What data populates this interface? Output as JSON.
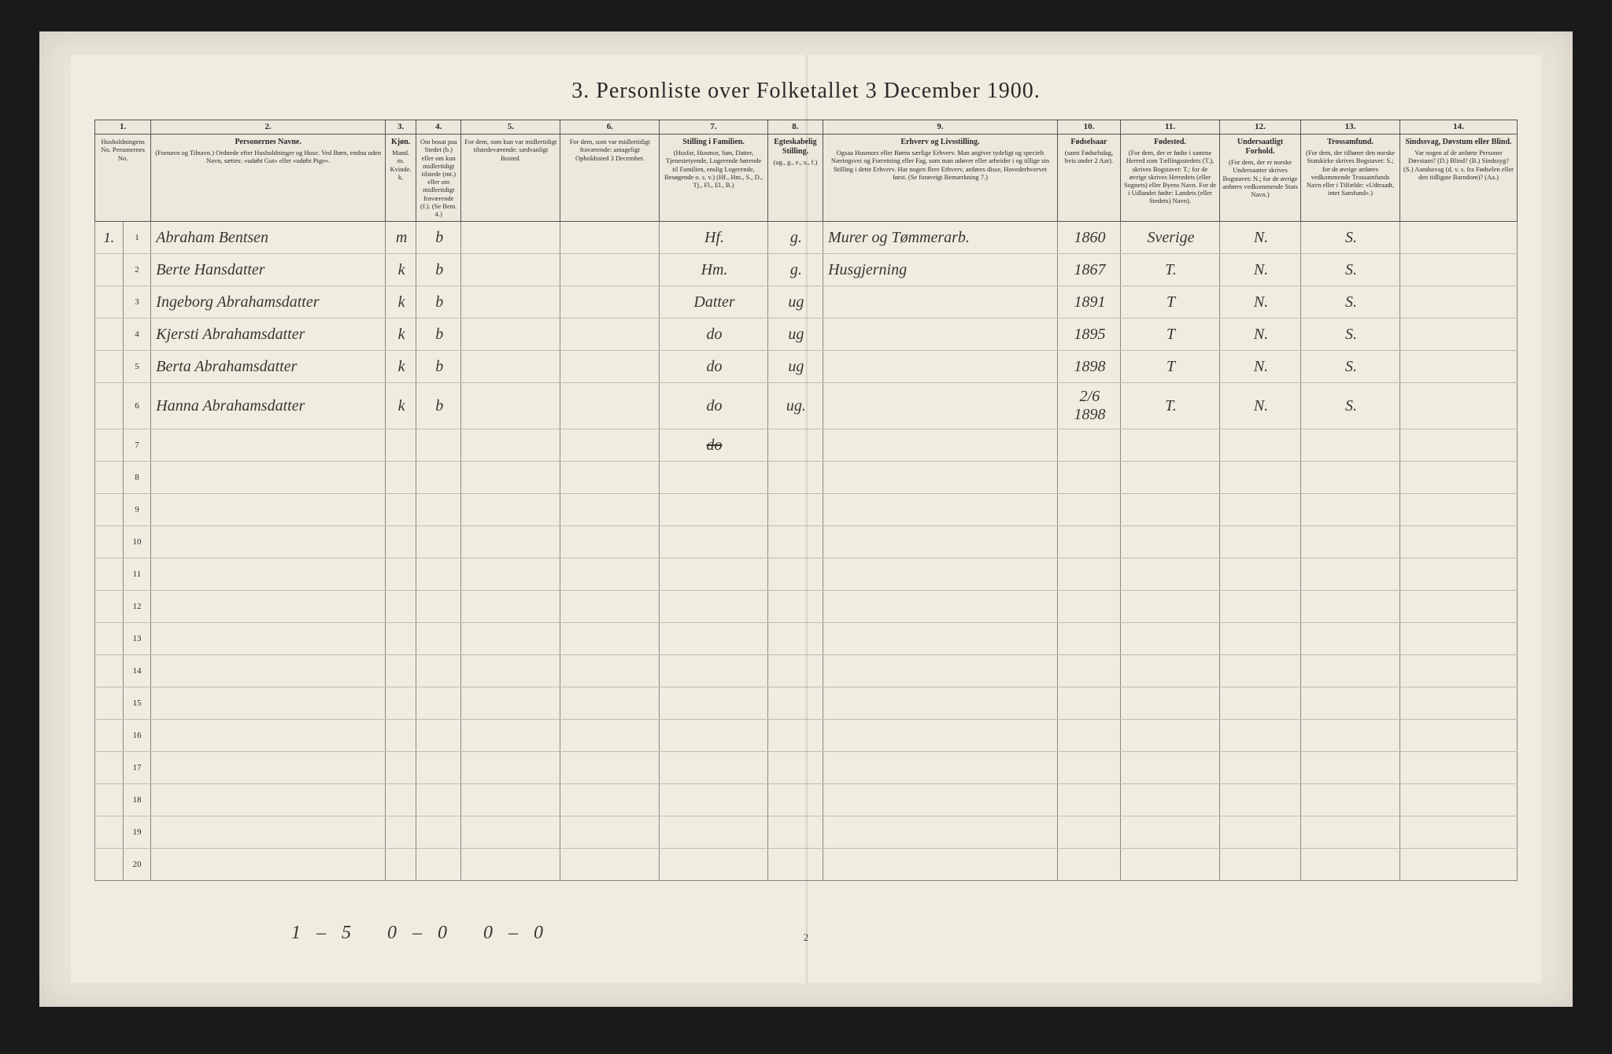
{
  "title": "3.   Personliste over Folketallet 3 December 1900.",
  "columns": {
    "c1": {
      "num": "1.",
      "title": "",
      "sub": "Husholdningens No.\nPersonernes No."
    },
    "c2": {
      "num": "2.",
      "title": "Personernes Navne.",
      "sub": "(Fornavn og Tilnavn.)\nOrdnede efter Husholdninger og Huse.\nVed Børn, endnu uden Navn, sættes: «udøbt Gut» eller «udøbt Pige»."
    },
    "c3": {
      "num": "3.",
      "title": "Kjøn.",
      "sub": "Mand. m.\nKvinde. k."
    },
    "c4": {
      "num": "4.",
      "title": "",
      "sub": "Om bosat paa Stedet (b.) eller om kun midlertidigt tilstede (mt.) eller om midlertidigt fraværende (f.). (Se Bem. 4.)"
    },
    "c5": {
      "num": "5.",
      "title": "",
      "sub": "For dem, som kun var midlertidigt tilstedeværende:\nsædvanligt Bosted."
    },
    "c6": {
      "num": "6.",
      "title": "",
      "sub": "For dem, som var midlertidigt fraværende:\nantageligt Opholdssted 3 December."
    },
    "c7": {
      "num": "7.",
      "title": "Stilling i Familien.",
      "sub": "(Husfar, Husmor, Søn, Datter, Tjenestetyende, Logerende hørende til Familien, enslig Logerende, Besøgende o. s. v.)\n(Hf., Hm., S., D., Tj., Fl., El., B.)"
    },
    "c8": {
      "num": "8.",
      "title": "Egteskabelig Stilling.",
      "sub": "(ug., g., e., s., f.)"
    },
    "c9": {
      "num": "9.",
      "title": "Erhverv og Livsstilling.",
      "sub": "Ogsaa Husmors eller Børns særlige Erhverv. Man angiver tydeligt og specielt Næringsvei og Forretning eller Fag, som man udøver eller arbeider i og tillige sin Stilling i dette Erhverv. Har nogen flere Erhverv, anføres disse, Hovederhvervet først.\n(Se forøvrigt Bemærkning 7.)"
    },
    "c10": {
      "num": "10.",
      "title": "Fødselsaar",
      "sub": "(samt Fødselsdag, hvis under 2 Aar)."
    },
    "c11": {
      "num": "11.",
      "title": "Fødested.",
      "sub": "(For dem, der er fødte i samme Herred som Tællingsstedets (T.), skrives Bogstavet: T.; for de øvrige skrives Herredets (eller Sognets) eller Byens Navn. For de i Udlandet fødte: Landets (eller Stedets) Navn)."
    },
    "c12": {
      "num": "12.",
      "title": "Undersaatligt Forhold.",
      "sub": "(For dem, der er norske Undersaatter skrives Bogstavet: N.; for de øvrige anføres vedkommende Stats Navn.)"
    },
    "c13": {
      "num": "13.",
      "title": "Trossamfund.",
      "sub": "(For dem, der tilhører den norske Statskirke skrives Bogstavet: S.; for de øvrige anføres vedkommende Trossamfunds Navn eller i Tilfælde: «Udtraadt, intet Samfund».)"
    },
    "c14": {
      "num": "14.",
      "title": "Sindssvag, Døvstum eller Blind.",
      "sub": "Var nogen af de anførte Personer Døvstum? (D.) Blind? (B.) Sindssyg? (S.) Aandssvag (d. v. s. fra Fødselen eller den tidligste Barndom)? (Aa.)"
    }
  },
  "rows": [
    {
      "hh": "1.",
      "pn": "1",
      "name": "Abraham Bentsen",
      "sex": "m",
      "res": "b",
      "c5": "",
      "c6": "",
      "fam": "Hf.",
      "mar": "g.",
      "occ": "Murer og Tømmerarb.",
      "year": "1860",
      "birthplace": "Sverige",
      "nat": "N.",
      "rel": "S.",
      "c14": ""
    },
    {
      "hh": "",
      "pn": "2",
      "name": "Berte Hansdatter",
      "sex": "k",
      "res": "b",
      "c5": "",
      "c6": "",
      "fam": "Hm.",
      "mar": "g.",
      "occ": "Husgjerning",
      "year": "1867",
      "birthplace": "T.",
      "nat": "N.",
      "rel": "S.",
      "c14": ""
    },
    {
      "hh": "",
      "pn": "3",
      "name": "Ingeborg Abrahamsdatter",
      "sex": "k",
      "res": "b",
      "c5": "",
      "c6": "",
      "fam": "Datter",
      "mar": "ug",
      "occ": "",
      "year": "1891",
      "birthplace": "T",
      "nat": "N.",
      "rel": "S.",
      "c14": ""
    },
    {
      "hh": "",
      "pn": "4",
      "name": "Kjersti Abrahamsdatter",
      "sex": "k",
      "res": "b",
      "c5": "",
      "c6": "",
      "fam": "do",
      "mar": "ug",
      "occ": "",
      "year": "1895",
      "birthplace": "T",
      "nat": "N.",
      "rel": "S.",
      "c14": ""
    },
    {
      "hh": "",
      "pn": "5",
      "name": "Berta Abrahamsdatter",
      "sex": "k",
      "res": "b",
      "c5": "",
      "c6": "",
      "fam": "do",
      "mar": "ug",
      "occ": "",
      "year": "1898",
      "birthplace": "T",
      "nat": "N.",
      "rel": "S.",
      "c14": ""
    },
    {
      "hh": "",
      "pn": "6",
      "name": "Hanna Abrahamsdatter",
      "sex": "k",
      "res": "b",
      "c5": "",
      "c6": "",
      "fam": "do",
      "mar": "ug.",
      "occ": "",
      "year": "2/6 1898",
      "birthplace": "T.",
      "nat": "N.",
      "rel": "S.",
      "c14": ""
    },
    {
      "hh": "",
      "pn": "7",
      "name": "",
      "sex": "",
      "res": "",
      "c5": "",
      "c6": "",
      "fam": "",
      "mar": "",
      "occ": "",
      "year": "",
      "birthplace": "",
      "nat": "",
      "rel": "",
      "c14": "",
      "struck": true
    },
    {
      "hh": "",
      "pn": "8",
      "name": "",
      "sex": "",
      "res": "",
      "c5": "",
      "c6": "",
      "fam": "",
      "mar": "",
      "occ": "",
      "year": "",
      "birthplace": "",
      "nat": "",
      "rel": "",
      "c14": ""
    },
    {
      "hh": "",
      "pn": "9",
      "name": "",
      "sex": "",
      "res": "",
      "c5": "",
      "c6": "",
      "fam": "",
      "mar": "",
      "occ": "",
      "year": "",
      "birthplace": "",
      "nat": "",
      "rel": "",
      "c14": ""
    },
    {
      "hh": "",
      "pn": "10",
      "name": "",
      "sex": "",
      "res": "",
      "c5": "",
      "c6": "",
      "fam": "",
      "mar": "",
      "occ": "",
      "year": "",
      "birthplace": "",
      "nat": "",
      "rel": "",
      "c14": ""
    },
    {
      "hh": "",
      "pn": "11",
      "name": "",
      "sex": "",
      "res": "",
      "c5": "",
      "c6": "",
      "fam": "",
      "mar": "",
      "occ": "",
      "year": "",
      "birthplace": "",
      "nat": "",
      "rel": "",
      "c14": ""
    },
    {
      "hh": "",
      "pn": "12",
      "name": "",
      "sex": "",
      "res": "",
      "c5": "",
      "c6": "",
      "fam": "",
      "mar": "",
      "occ": "",
      "year": "",
      "birthplace": "",
      "nat": "",
      "rel": "",
      "c14": ""
    },
    {
      "hh": "",
      "pn": "13",
      "name": "",
      "sex": "",
      "res": "",
      "c5": "",
      "c6": "",
      "fam": "",
      "mar": "",
      "occ": "",
      "year": "",
      "birthplace": "",
      "nat": "",
      "rel": "",
      "c14": ""
    },
    {
      "hh": "",
      "pn": "14",
      "name": "",
      "sex": "",
      "res": "",
      "c5": "",
      "c6": "",
      "fam": "",
      "mar": "",
      "occ": "",
      "year": "",
      "birthplace": "",
      "nat": "",
      "rel": "",
      "c14": ""
    },
    {
      "hh": "",
      "pn": "15",
      "name": "",
      "sex": "",
      "res": "",
      "c5": "",
      "c6": "",
      "fam": "",
      "mar": "",
      "occ": "",
      "year": "",
      "birthplace": "",
      "nat": "",
      "rel": "",
      "c14": ""
    },
    {
      "hh": "",
      "pn": "16",
      "name": "",
      "sex": "",
      "res": "",
      "c5": "",
      "c6": "",
      "fam": "",
      "mar": "",
      "occ": "",
      "year": "",
      "birthplace": "",
      "nat": "",
      "rel": "",
      "c14": ""
    },
    {
      "hh": "",
      "pn": "17",
      "name": "",
      "sex": "",
      "res": "",
      "c5": "",
      "c6": "",
      "fam": "",
      "mar": "",
      "occ": "",
      "year": "",
      "birthplace": "",
      "nat": "",
      "rel": "",
      "c14": ""
    },
    {
      "hh": "",
      "pn": "18",
      "name": "",
      "sex": "",
      "res": "",
      "c5": "",
      "c6": "",
      "fam": "",
      "mar": "",
      "occ": "",
      "year": "",
      "birthplace": "",
      "nat": "",
      "rel": "",
      "c14": ""
    },
    {
      "hh": "",
      "pn": "19",
      "name": "",
      "sex": "",
      "res": "",
      "c5": "",
      "c6": "",
      "fam": "",
      "mar": "",
      "occ": "",
      "year": "",
      "birthplace": "",
      "nat": "",
      "rel": "",
      "c14": ""
    },
    {
      "hh": "",
      "pn": "20",
      "name": "",
      "sex": "",
      "res": "",
      "c5": "",
      "c6": "",
      "fam": "",
      "mar": "",
      "occ": "",
      "year": "",
      "birthplace": "",
      "nat": "",
      "rel": "",
      "c14": ""
    }
  ],
  "row7_struck": "do",
  "bottom_note": "1–5 0–0 0–0",
  "page_number": "2",
  "col_widths": {
    "c1a": "24px",
    "c1b": "24px",
    "c2": "260px",
    "c3": "26px",
    "c4": "50px",
    "c5": "110px",
    "c6": "110px",
    "c7": "120px",
    "c8": "58px",
    "c9": "260px",
    "c10": "70px",
    "c11": "110px",
    "c12": "90px",
    "c13": "110px",
    "c14": "130px"
  },
  "colors": {
    "paper": "#f0ece0",
    "frame": "#e8e4d8",
    "ink": "#2a2a2a",
    "handwriting": "#3a3530",
    "border_dark": "#555",
    "border_light": "#c0bdb0"
  }
}
